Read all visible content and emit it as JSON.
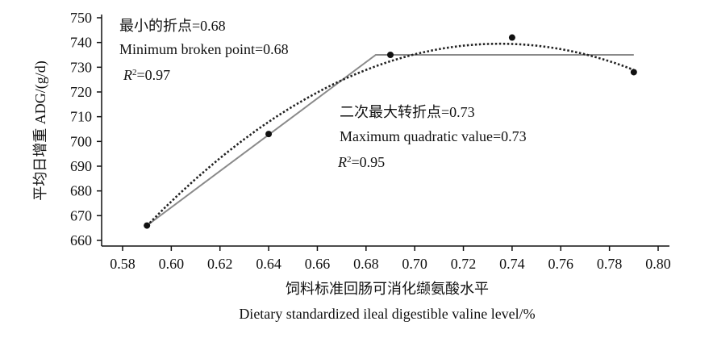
{
  "chart_data": {
    "type": "line",
    "xlabel_cn": "饲料标准回肠可消化缬氨酸水平",
    "xlabel_en": "Dietary standardized ileal digestible valine level/%",
    "ylabel": "平均日增重  ADG/(g/d)",
    "xlim": [
      0.58,
      0.8
    ],
    "ylim": [
      660,
      750
    ],
    "x_ticks": [
      "0.58",
      "0.60",
      "0.62",
      "0.64",
      "0.66",
      "0.68",
      "0.70",
      "0.72",
      "0.74",
      "0.76",
      "0.78",
      "0.80"
    ],
    "y_ticks": [
      "660",
      "670",
      "680",
      "690",
      "700",
      "710",
      "720",
      "730",
      "740",
      "750"
    ],
    "points": {
      "x": [
        0.59,
        0.64,
        0.69,
        0.74,
        0.79
      ],
      "y": [
        666,
        703,
        735,
        742,
        728
      ]
    },
    "broken_line": {
      "x": [
        0.59,
        0.684,
        0.79
      ],
      "y": [
        666,
        735,
        735
      ]
    },
    "quadratic": {
      "vertex_x": 0.735,
      "vertex_y": 739.5,
      "a": -3500
    },
    "annotations": {
      "broken_cn": "最小的折点=0.68",
      "broken_en": "Minimum broken point=0.68",
      "broken_r2_prefix": "R",
      "broken_r2_sup": "2",
      "broken_r2_value": "=0.97",
      "quad_cn": "二次最大转折点=0.73",
      "quad_en": "Maximum quadratic value=0.73",
      "quad_r2_prefix": "R",
      "quad_r2_sup": "2",
      "quad_r2_value": "=0.95"
    },
    "colors": {
      "broken_line": "#8a8a8a",
      "quadratic": "#222222",
      "points": "#111111"
    }
  }
}
